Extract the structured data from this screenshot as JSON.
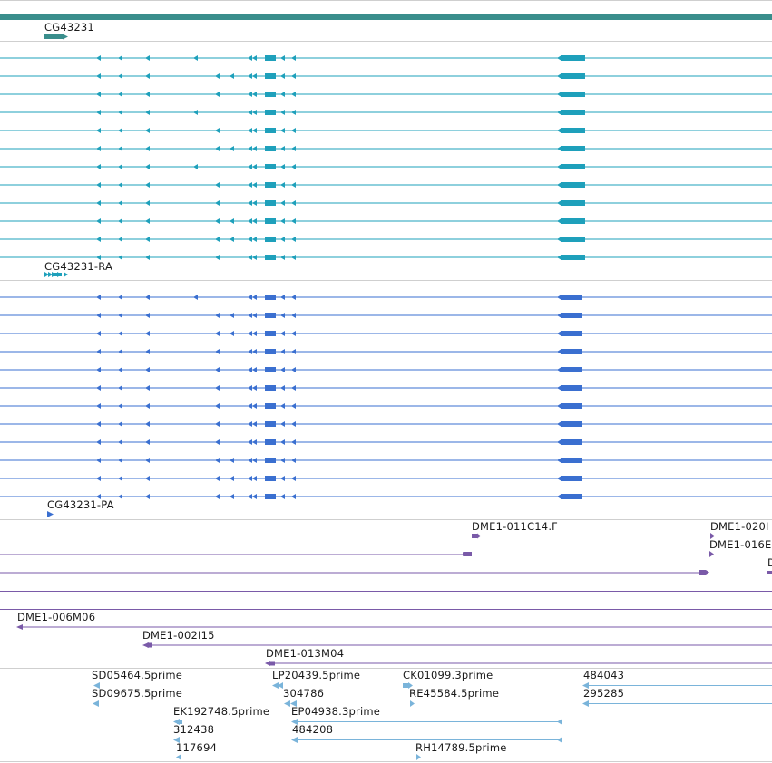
{
  "colors": {
    "gene": "#3a8e8c",
    "transcript_ra": "#1ea0bb",
    "transcript_pa": "#3a6fd0",
    "bac": "#7a5aa8",
    "est": "#7ab4da",
    "separator": "#cfcfcf"
  },
  "gene_track": {
    "label": "CG43231"
  },
  "transcript_ra": {
    "label": "CG43231-RA"
  },
  "transcript_pa": {
    "label": "CG43231-PA"
  },
  "bac_track": {
    "labels": {
      "a": "DME1-011C14.F",
      "b": "DME1-020I",
      "c": "DME1-016E",
      "d": "D",
      "e": "DME1-006M06",
      "f": "DME1-002I15",
      "g": "DME1-013M04"
    }
  },
  "est_track": {
    "labels": {
      "sd05464": "SD05464.5prime",
      "lp20439": "LP20439.5prime",
      "ck01099": "CK01099.3prime",
      "n484043": "484043",
      "sd09675": "SD09675.5prime",
      "n304786": "304786",
      "re45584": "RE45584.5prime",
      "n295285": "295285",
      "ek192748": "EK192748.5prime",
      "ep04938": "EP04938.3prime",
      "n312438": "312438",
      "n484208": "484208",
      "n117694": "117694",
      "rh14789": "RH14789.5prime"
    }
  }
}
